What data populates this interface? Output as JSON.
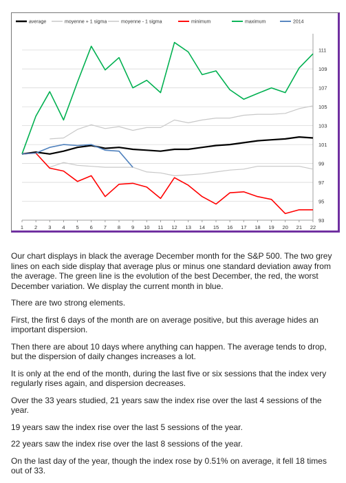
{
  "chart_data": {
    "type": "line",
    "x": [
      1,
      2,
      3,
      4,
      5,
      6,
      7,
      8,
      9,
      10,
      11,
      12,
      13,
      14,
      15,
      16,
      17,
      18,
      19,
      20,
      21,
      22
    ],
    "ylim": [
      93,
      112
    ],
    "y_ticks": [
      93,
      95,
      97,
      99,
      101,
      103,
      105,
      107,
      109,
      111
    ],
    "series": [
      {
        "name": "average",
        "color": "#000000",
        "width": 2.2,
        "x": [
          1,
          2,
          3,
          4,
          5,
          6,
          7,
          8,
          9,
          10,
          11,
          12,
          13,
          14,
          15,
          16,
          17,
          18,
          19,
          20,
          21,
          22
        ],
        "values": [
          100.0,
          100.2,
          100.0,
          100.3,
          100.7,
          100.9,
          100.6,
          100.7,
          100.5,
          100.4,
          100.3,
          100.5,
          100.5,
          100.7,
          100.9,
          101.0,
          101.2,
          101.4,
          101.5,
          101.6,
          101.8,
          101.7
        ]
      },
      {
        "name": "moyenne + 1 sigma",
        "color": "#c8c8c8",
        "width": 1.2,
        "x": [
          3,
          4,
          5,
          6,
          7,
          8,
          9,
          10,
          11,
          12,
          13,
          14,
          15,
          16,
          17,
          18,
          19,
          20,
          21,
          22
        ],
        "values": [
          101.6,
          101.7,
          102.6,
          103.1,
          102.7,
          102.9,
          102.5,
          102.8,
          102.8,
          103.6,
          103.3,
          103.6,
          103.8,
          103.8,
          104.1,
          104.2,
          104.2,
          104.3,
          104.8,
          105.1
        ]
      },
      {
        "name": "moyenne - 1 sigma",
        "color": "#c8c8c8",
        "width": 1.2,
        "x": [
          3,
          4,
          5,
          6,
          7,
          8,
          9,
          10,
          11,
          12,
          13,
          14,
          15,
          16,
          17,
          18,
          19,
          20,
          21,
          22
        ],
        "values": [
          98.6,
          99.1,
          98.8,
          98.7,
          98.6,
          98.6,
          98.6,
          98.1,
          98.0,
          97.7,
          97.8,
          97.9,
          98.1,
          98.3,
          98.4,
          98.7,
          98.7,
          98.7,
          98.7,
          98.4
        ]
      },
      {
        "name": "minimum",
        "color": "#ff0000",
        "width": 1.6,
        "x": [
          1,
          2,
          3,
          4,
          5,
          6,
          7,
          8,
          9,
          10,
          11,
          12,
          13,
          14,
          15,
          16,
          17,
          18,
          19,
          20,
          21,
          22
        ],
        "values": [
          100.0,
          100.1,
          98.5,
          98.2,
          97.1,
          97.7,
          95.5,
          96.8,
          96.9,
          96.5,
          95.3,
          97.5,
          96.7,
          95.5,
          94.7,
          95.9,
          96.0,
          95.5,
          95.2,
          93.7,
          94.1,
          94.1
        ]
      },
      {
        "name": "maximum",
        "color": "#00b050",
        "width": 1.6,
        "x": [
          1,
          2,
          3,
          4,
          5,
          6,
          7,
          8,
          9,
          10,
          11,
          12,
          13,
          14,
          15,
          16,
          17,
          18,
          19,
          20,
          21,
          22
        ],
        "values": [
          100.0,
          104.0,
          106.6,
          103.6,
          107.6,
          111.4,
          108.9,
          110.2,
          107.0,
          107.8,
          106.5,
          111.8,
          110.8,
          108.4,
          108.8,
          106.8,
          105.8,
          106.4,
          107.0,
          106.5,
          109.1,
          110.6
        ]
      },
      {
        "name": "2014",
        "color": "#4f81bd",
        "width": 1.6,
        "x": [
          1,
          2,
          3,
          4,
          5,
          6,
          7,
          8,
          9
        ],
        "values": [
          100.0,
          100.1,
          100.7,
          101.0,
          100.9,
          101.0,
          100.4,
          100.3,
          98.6
        ]
      }
    ],
    "legend": "top",
    "grid": true,
    "y_axis_side": "right"
  },
  "article": {
    "p1": "Our chart displays in black the average December month for the S&P 500. The two grey lines on each side display that average plus or minus one standard deviation away from the average. The green line is the evolution of the best December, the red, the worst December variation. We display the current month in blue.",
    "p2": "There are two strong elements.",
    "p3": "First, the first 6 days of the month are on average positive, but this average hides an important dispersion.",
    "p4": "Then there are about 10 days where anything can happen. The average tends to drop, but the dispersion of daily changes increases a lot.",
    "p5": "It is only at the end of the month, during the last five or six sessions that the index very regularly rises again, and dispersion decreases.",
    "p6": "Over the 33 years studied, 21 years saw the index rise over the last 4 sessions of the year.",
    "p7": "19 years saw the index rise over the last 5 sessions of the year.",
    "p8": "22 years saw the index rise over the last 8 sessions of the year.",
    "p9": "On the last day of the year, though the index rose by 0.51% on average, it fell 18 times out of 33."
  }
}
